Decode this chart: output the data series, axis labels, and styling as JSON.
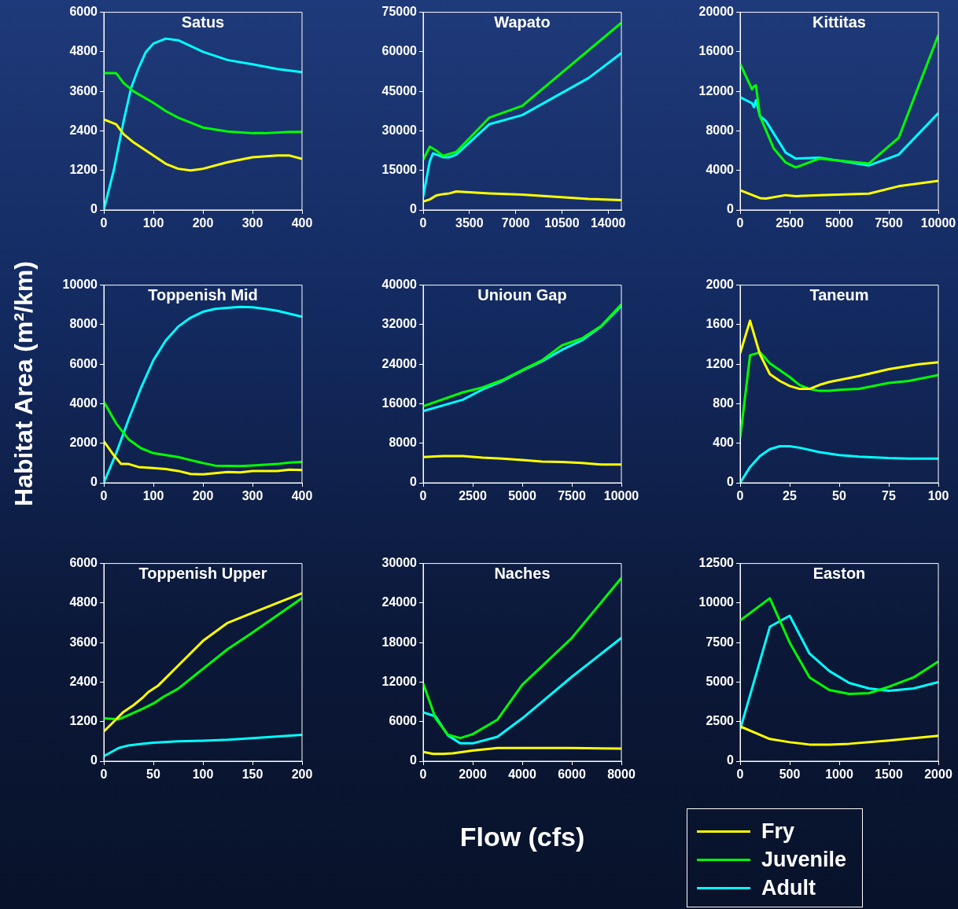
{
  "chart_data": [
    {
      "type": "line",
      "title": "Satus",
      "ylabel": "Habitat Area (m²/km)",
      "xlim": [
        0,
        400
      ],
      "xticks": [
        0,
        100,
        200,
        300,
        400
      ],
      "ylim": [
        0,
        6000
      ],
      "yticks": [
        0,
        1200,
        2400,
        3600,
        4800,
        6000
      ],
      "grid": false,
      "series": [
        {
          "color": "#ffff00",
          "x": [
            0,
            25,
            40,
            60,
            100,
            125,
            150,
            175,
            200,
            250,
            300,
            350,
            375,
            400
          ],
          "values": [
            2750,
            2600,
            2300,
            2050,
            1650,
            1400,
            1250,
            1200,
            1250,
            1450,
            1600,
            1650,
            1650,
            1550
          ]
        },
        {
          "color": "#00ff00",
          "x": [
            0,
            25,
            40,
            60,
            100,
            125,
            150,
            200,
            250,
            300,
            325,
            375,
            400
          ],
          "values": [
            4150,
            4150,
            3850,
            3600,
            3250,
            3000,
            2800,
            2500,
            2380,
            2330,
            2330,
            2370,
            2370
          ]
        },
        {
          "color": "#00ffff",
          "x": [
            0,
            20,
            40,
            55,
            70,
            85,
            100,
            125,
            150,
            200,
            250,
            300,
            350,
            400
          ],
          "values": [
            0,
            1200,
            2700,
            3700,
            4300,
            4800,
            5050,
            5200,
            5150,
            4800,
            4550,
            4420,
            4280,
            4180
          ]
        }
      ]
    },
    {
      "type": "line",
      "title": "Wapato",
      "xlim": [
        0,
        15000
      ],
      "xticks": [
        0,
        3500,
        7000,
        10500,
        14000
      ],
      "ylim": [
        0,
        75000
      ],
      "yticks": [
        0,
        15000,
        30000,
        45000,
        60000,
        75000
      ],
      "grid": false,
      "series": [
        {
          "color": "#ffff00",
          "x": [
            0,
            500,
            1000,
            1500,
            2000,
            2500,
            5000,
            7500,
            12500,
            15000
          ],
          "values": [
            3200,
            4000,
            5500,
            6000,
            6300,
            7000,
            6300,
            5800,
            4200,
            3700
          ]
        },
        {
          "color": "#00ff00",
          "x": [
            0,
            500,
            1000,
            1500,
            2500,
            5000,
            7500,
            15000
          ],
          "values": [
            19000,
            24000,
            22500,
            20500,
            22000,
            35000,
            39500,
            71000
          ]
        },
        {
          "color": "#00ffff",
          "x": [
            0,
            500,
            750,
            1500,
            2000,
            2500,
            5000,
            7500,
            12500,
            15000
          ],
          "values": [
            5000,
            18500,
            21500,
            20000,
            20000,
            21000,
            32500,
            36000,
            50000,
            59500
          ]
        }
      ]
    },
    {
      "type": "line",
      "title": "Kittitas",
      "xlim": [
        0,
        10000
      ],
      "xticks": [
        0,
        2500,
        5000,
        7500,
        10000
      ],
      "ylim": [
        0,
        20000
      ],
      "yticks": [
        0,
        4000,
        8000,
        12000,
        16000,
        20000
      ],
      "grid": false,
      "series": [
        {
          "color": "#ffff00",
          "x": [
            0,
            1000,
            1300,
            2300,
            2800,
            4000,
            6500,
            8000,
            10000
          ],
          "values": [
            2000,
            1200,
            1150,
            1500,
            1400,
            1500,
            1650,
            2400,
            2950
          ]
        },
        {
          "color": "#00ff00",
          "x": [
            0,
            300,
            600,
            700,
            800,
            1000,
            1700,
            2300,
            2800,
            4000,
            6500,
            8000,
            10000
          ],
          "values": [
            14800,
            13500,
            12200,
            12500,
            12600,
            9500,
            6200,
            4800,
            4300,
            5200,
            4700,
            7300,
            17700
          ]
        },
        {
          "color": "#00ffff",
          "x": [
            0,
            600,
            700,
            800,
            1000,
            1300,
            2300,
            2800,
            4000,
            6500,
            8000,
            10000
          ],
          "values": [
            11400,
            10800,
            10400,
            11100,
            9500,
            9000,
            5800,
            5200,
            5300,
            4500,
            5600,
            9800
          ]
        }
      ]
    },
    {
      "type": "line",
      "title": "Toppenish Mid",
      "xlim": [
        0,
        400
      ],
      "xticks": [
        0,
        100,
        200,
        300,
        400
      ],
      "ylim": [
        0,
        10000
      ],
      "yticks": [
        0,
        2000,
        4000,
        6000,
        8000,
        10000
      ],
      "grid": false,
      "series": [
        {
          "color": "#ffff00",
          "x": [
            0,
            20,
            35,
            50,
            70,
            100,
            125,
            150,
            175,
            200,
            250,
            275,
            300,
            350,
            375,
            400
          ],
          "values": [
            2100,
            1400,
            950,
            950,
            800,
            750,
            700,
            600,
            450,
            430,
            550,
            530,
            600,
            600,
            670,
            650
          ]
        },
        {
          "color": "#00ff00",
          "x": [
            0,
            25,
            50,
            75,
            100,
            150,
            175,
            200,
            225,
            275,
            300,
            350,
            375,
            400
          ],
          "values": [
            4100,
            3000,
            2200,
            1750,
            1500,
            1300,
            1150,
            1000,
            870,
            850,
            880,
            950,
            1020,
            1050
          ]
        },
        {
          "color": "#00ffff",
          "x": [
            0,
            25,
            50,
            75,
            100,
            125,
            150,
            175,
            200,
            225,
            275,
            300,
            325,
            350,
            400
          ],
          "values": [
            0,
            1500,
            3200,
            4800,
            6200,
            7200,
            7900,
            8350,
            8650,
            8800,
            8900,
            8880,
            8800,
            8700,
            8400
          ]
        }
      ]
    },
    {
      "type": "line",
      "title": "Unioun Gap",
      "xlim": [
        0,
        10000
      ],
      "xticks": [
        0,
        2500,
        5000,
        7500,
        10000
      ],
      "ylim": [
        0,
        40000
      ],
      "yticks": [
        0,
        8000,
        16000,
        24000,
        32000,
        40000
      ],
      "grid": false,
      "series": [
        {
          "color": "#ffff00",
          "x": [
            0,
            1000,
            2000,
            3000,
            4000,
            5000,
            6000,
            7000,
            8000,
            9000,
            10000
          ],
          "values": [
            5200,
            5400,
            5400,
            5100,
            4900,
            4600,
            4300,
            4200,
            4000,
            3700,
            3700
          ]
        },
        {
          "color": "#00ff00",
          "x": [
            0,
            2000,
            3000,
            4000,
            5000,
            6000,
            7000,
            8000,
            9000,
            10000
          ],
          "values": [
            15500,
            18300,
            19300,
            20800,
            22800,
            24800,
            27800,
            29200,
            31800,
            36100
          ]
        },
        {
          "color": "#00ffff",
          "x": [
            0,
            2000,
            3000,
            4000,
            5000,
            6000,
            7000,
            8000,
            9000,
            10000
          ],
          "values": [
            14500,
            16800,
            18900,
            20600,
            22700,
            24600,
            26900,
            28800,
            31700,
            35800
          ]
        }
      ]
    },
    {
      "type": "line",
      "title": "Taneum",
      "xlim": [
        0,
        100
      ],
      "xticks": [
        0,
        25,
        50,
        75,
        100
      ],
      "ylim": [
        0,
        2000
      ],
      "yticks": [
        0,
        400,
        800,
        1200,
        1600,
        2000
      ],
      "grid": false,
      "series": [
        {
          "color": "#ffff00",
          "x": [
            0,
            5,
            10,
            15,
            20,
            25,
            30,
            35,
            40,
            45,
            50,
            60,
            75,
            90,
            100
          ],
          "values": [
            1310,
            1640,
            1300,
            1100,
            1030,
            980,
            950,
            950,
            990,
            1020,
            1040,
            1080,
            1150,
            1200,
            1220
          ]
        },
        {
          "color": "#00ff00",
          "x": [
            0,
            5,
            10,
            15,
            20,
            25,
            30,
            35,
            40,
            45,
            50,
            60,
            75,
            85,
            100
          ],
          "values": [
            450,
            1290,
            1320,
            1210,
            1140,
            1070,
            990,
            950,
            930,
            930,
            940,
            950,
            1010,
            1030,
            1090
          ]
        },
        {
          "color": "#00ffff",
          "x": [
            0,
            5,
            10,
            15,
            20,
            25,
            30,
            40,
            50,
            60,
            75,
            85,
            100
          ],
          "values": [
            0,
            160,
            270,
            340,
            370,
            370,
            355,
            310,
            280,
            265,
            250,
            245,
            245
          ]
        }
      ]
    },
    {
      "type": "line",
      "title": "Toppenish Upper",
      "xlim": [
        0,
        200
      ],
      "xticks": [
        0,
        50,
        100,
        150,
        200
      ],
      "ylim": [
        0,
        6000
      ],
      "yticks": [
        0,
        1200,
        2400,
        3600,
        4800,
        6000
      ],
      "grid": false,
      "series": [
        {
          "color": "#ffff00",
          "x": [
            0,
            10,
            20,
            30,
            40,
            45,
            55,
            60,
            75,
            100,
            125,
            150,
            200
          ],
          "values": [
            900,
            1200,
            1500,
            1700,
            1950,
            2100,
            2300,
            2450,
            2900,
            3650,
            4200,
            4500,
            5100
          ]
        },
        {
          "color": "#00ff00",
          "x": [
            0,
            15,
            25,
            40,
            50,
            60,
            75,
            100,
            125,
            150,
            200
          ],
          "values": [
            1300,
            1270,
            1400,
            1600,
            1750,
            1950,
            2200,
            2800,
            3400,
            3900,
            4950
          ]
        },
        {
          "color": "#00ffff",
          "x": [
            0,
            15,
            25,
            40,
            50,
            75,
            100,
            125,
            150,
            200
          ],
          "values": [
            150,
            400,
            480,
            530,
            560,
            600,
            620,
            650,
            700,
            800
          ]
        }
      ]
    },
    {
      "type": "line",
      "title": "Naches",
      "xlabel": "Flow (cfs)",
      "xlim": [
        0,
        8000
      ],
      "xticks": [
        0,
        2000,
        4000,
        6000,
        8000
      ],
      "ylim": [
        0,
        30000
      ],
      "yticks": [
        0,
        6000,
        12000,
        18000,
        24000,
        30000
      ],
      "grid": false,
      "series": [
        {
          "color": "#ffff00",
          "x": [
            0,
            400,
            800,
            1200,
            2000,
            3000,
            4000,
            6000,
            8000
          ],
          "values": [
            1400,
            1100,
            1100,
            1200,
            1600,
            2000,
            2000,
            2000,
            1900
          ]
        },
        {
          "color": "#00ff00",
          "x": [
            0,
            500,
            1000,
            1500,
            2000,
            3000,
            4000,
            6000,
            8000
          ],
          "values": [
            11800,
            6500,
            4000,
            3500,
            4100,
            6300,
            11600,
            18700,
            27800
          ]
        },
        {
          "color": "#00ffff",
          "x": [
            0,
            500,
            1000,
            1500,
            2000,
            3000,
            4000,
            6000,
            8000
          ],
          "values": [
            7400,
            6800,
            3900,
            2700,
            2700,
            3700,
            6500,
            12800,
            18700
          ]
        }
      ]
    },
    {
      "type": "line",
      "title": "Easton",
      "xlim": [
        0,
        2000
      ],
      "xticks": [
        0,
        500,
        1000,
        1500,
        2000
      ],
      "ylim": [
        0,
        12500
      ],
      "yticks": [
        0,
        2500,
        5000,
        7500,
        10000,
        12500
      ],
      "grid": false,
      "legend": "bottom",
      "series": [
        {
          "name": "Fry",
          "color": "#ffff00",
          "x": [
            0,
            300,
            500,
            700,
            900,
            1100,
            1500,
            1750,
            2000
          ],
          "values": [
            2200,
            1400,
            1200,
            1050,
            1050,
            1100,
            1300,
            1450,
            1600
          ]
        },
        {
          "name": "Juvenile",
          "color": "#00ff00",
          "x": [
            0,
            300,
            500,
            700,
            900,
            1100,
            1300,
            1500,
            1750,
            2000
          ],
          "values": [
            8900,
            10300,
            7500,
            5300,
            4500,
            4250,
            4300,
            4700,
            5300,
            6300
          ]
        },
        {
          "name": "Adult",
          "color": "#00ffff",
          "x": [
            0,
            300,
            500,
            700,
            900,
            1100,
            1300,
            1500,
            1750,
            2000
          ],
          "values": [
            2000,
            8500,
            9200,
            6800,
            5700,
            4950,
            4600,
            4450,
            4600,
            5000
          ]
        }
      ]
    }
  ]
}
